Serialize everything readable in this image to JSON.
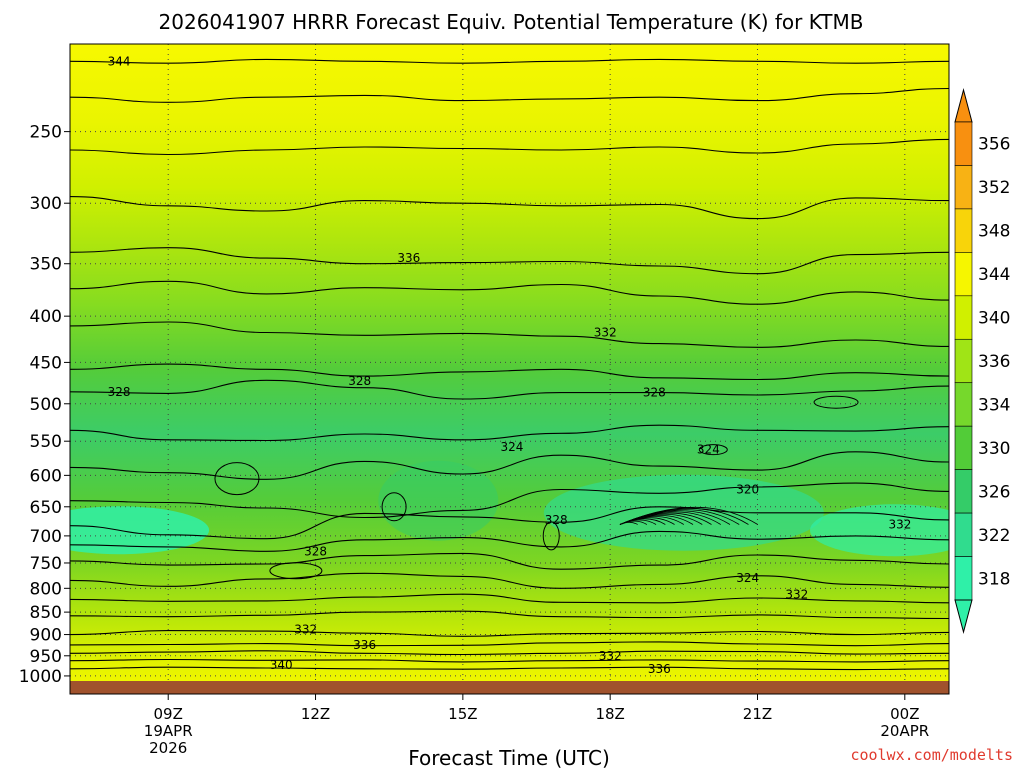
{
  "chart_data": {
    "type": "heatmap",
    "title": "2026041907 HRRR Forecast Equiv. Potential Temperature (K) for KTMB",
    "xlabel": "Forecast Time (UTC)",
    "ylabel": "",
    "credit": "coolwx.com/modelts",
    "x_ticks": [
      {
        "label": "09Z",
        "sub": [
          "19APR",
          "2026"
        ],
        "hours_since_00z": 9
      },
      {
        "label": "12Z",
        "sub": [],
        "hours_since_00z": 12
      },
      {
        "label": "15Z",
        "sub": [],
        "hours_since_00z": 15
      },
      {
        "label": "18Z",
        "sub": [],
        "hours_since_00z": 18
      },
      {
        "label": "21Z",
        "sub": [],
        "hours_since_00z": 21
      },
      {
        "label": "00Z",
        "sub": [
          "20APR"
        ],
        "hours_since_00z": 24
      }
    ],
    "xlim_hours": [
      7.0,
      24.9
    ],
    "y_ticks": [
      250,
      300,
      350,
      400,
      450,
      500,
      550,
      600,
      650,
      700,
      750,
      800,
      850,
      900,
      950,
      1000
    ],
    "ylim_hpa": [
      200,
      1013
    ],
    "y_scale": "log",
    "colorbar": {
      "ticks": [
        318,
        322,
        326,
        330,
        334,
        336,
        340,
        344,
        348,
        352,
        356
      ],
      "colors": [
        "#2ff0a8",
        "#30dc8e",
        "#34cc68",
        "#52cc38",
        "#76d82c",
        "#a0e416",
        "#d0f000",
        "#f6f600",
        "#f8d40a",
        "#f8b214",
        "#f89010"
      ],
      "extend": "both"
    },
    "isotherms": [
      {
        "level": 344,
        "pressures": [
          209,
          210,
          208,
          209,
          210,
          209,
          208,
          209,
          210,
          209
        ]
      },
      {
        "level": 342,
        "pressures": [
          229,
          232,
          229,
          228,
          231,
          230,
          229,
          231,
          227,
          224
        ]
      },
      {
        "level": 340,
        "pressures": [
          262,
          265,
          262,
          260,
          261,
          262,
          260,
          264,
          258,
          255
        ]
      },
      {
        "level": 338,
        "pressures": [
          295,
          302,
          306,
          298,
          300,
          302,
          301,
          312,
          296,
          298
        ]
      },
      {
        "level": 336,
        "pressures": [
          340,
          336,
          345,
          350,
          349,
          348,
          352,
          359,
          342,
          340
        ]
      },
      {
        "level": 334,
        "pressures": [
          373,
          366,
          378,
          372,
          374,
          369,
          380,
          388,
          376,
          384
        ]
      },
      {
        "level": 332,
        "pressures": [
          410,
          406,
          417,
          420,
          418,
          421,
          429,
          433,
          425,
          432
        ]
      },
      {
        "level": 330,
        "pressures": [
          458,
          452,
          458,
          466,
          461,
          458,
          468,
          470,
          462,
          466
        ]
      },
      {
        "level": 328,
        "pressures": [
          485,
          487,
          471,
          480,
          494,
          486,
          486,
          489,
          484,
          478
        ]
      },
      {
        "level": 326,
        "pressures": [
          535,
          548,
          549,
          540,
          548,
          539,
          528,
          535,
          536,
          530
        ]
      },
      {
        "level": 324,
        "pressures": [
          588,
          596,
          606,
          579,
          598,
          570,
          586,
          592,
          565,
          580
        ]
      },
      {
        "level": 322,
        "pressures": [
          640,
          643,
          652,
          668,
          656,
          622,
          628,
          618,
          612,
          625
        ]
      },
      {
        "level": 320,
        "pressures": [
          682,
          698,
          705,
          661,
          667,
          676,
          650,
          660,
          660,
          672
        ]
      },
      {
        "level": 322,
        "pressures": [
          716,
          720,
          728,
          707,
          703,
          720,
          692,
          706,
          700,
          707
        ]
      },
      {
        "level": 324,
        "pressures": [
          746,
          754,
          752,
          736,
          732,
          762,
          754,
          735,
          745,
          752
        ]
      },
      {
        "level": 326,
        "pressures": [
          784,
          796,
          781,
          770,
          776,
          800,
          792,
          775,
          792,
          798
        ]
      },
      {
        "level": 328,
        "pressures": [
          823,
          827,
          826,
          818,
          812,
          829,
          830,
          820,
          826,
          830
        ]
      },
      {
        "level": 330,
        "pressures": [
          858,
          860,
          857,
          850,
          848,
          860,
          862,
          856,
          862,
          864
        ]
      },
      {
        "level": 332,
        "pressures": [
          900,
          891,
          892,
          897,
          904,
          898,
          897,
          893,
          900,
          895
        ]
      },
      {
        "level": 334,
        "pressures": [
          924,
          923,
          921,
          926,
          925,
          919,
          917,
          922,
          926,
          921
        ]
      },
      {
        "level": 336,
        "pressures": [
          944,
          941,
          938,
          944,
          947,
          944,
          939,
          940,
          946,
          944
        ]
      },
      {
        "level": 338,
        "pressures": [
          962,
          959,
          961,
          960,
          965,
          962,
          960,
          963,
          965,
          962
        ]
      },
      {
        "level": 340,
        "pressures": [
          982,
          978,
          980,
          982,
          983,
          980,
          978,
          982,
          984,
          982
        ]
      }
    ],
    "isotherm_hours": [
      7.0,
      9.0,
      11.0,
      13.0,
      15.0,
      17.0,
      19.0,
      21.0,
      23.0,
      24.9
    ],
    "contour_labels": [
      {
        "text": "344",
        "hour": 8.0,
        "p": 209
      },
      {
        "text": "336",
        "hour": 13.9,
        "p": 345
      },
      {
        "text": "332",
        "hour": 17.9,
        "p": 417
      },
      {
        "text": "328",
        "hour": 8.0,
        "p": 485
      },
      {
        "text": "328",
        "hour": 12.9,
        "p": 472
      },
      {
        "text": "328",
        "hour": 18.9,
        "p": 486
      },
      {
        "text": "324",
        "hour": 16.0,
        "p": 558
      },
      {
        "text": "324",
        "hour": 20.0,
        "p": 562
      },
      {
        "text": "320",
        "hour": 20.8,
        "p": 622
      },
      {
        "text": "328",
        "hour": 16.9,
        "p": 672
      },
      {
        "text": "332",
        "hour": 23.9,
        "p": 680
      },
      {
        "text": "328",
        "hour": 12.0,
        "p": 728
      },
      {
        "text": "324",
        "hour": 20.8,
        "p": 779
      },
      {
        "text": "332",
        "hour": 21.8,
        "p": 813
      },
      {
        "text": "332",
        "hour": 11.8,
        "p": 888
      },
      {
        "text": "336",
        "hour": 13.0,
        "p": 924
      },
      {
        "text": "340",
        "hour": 11.3,
        "p": 973
      },
      {
        "text": "332",
        "hour": 18.0,
        "p": 950
      },
      {
        "text": "336",
        "hour": 19.0,
        "p": 983
      }
    ]
  }
}
